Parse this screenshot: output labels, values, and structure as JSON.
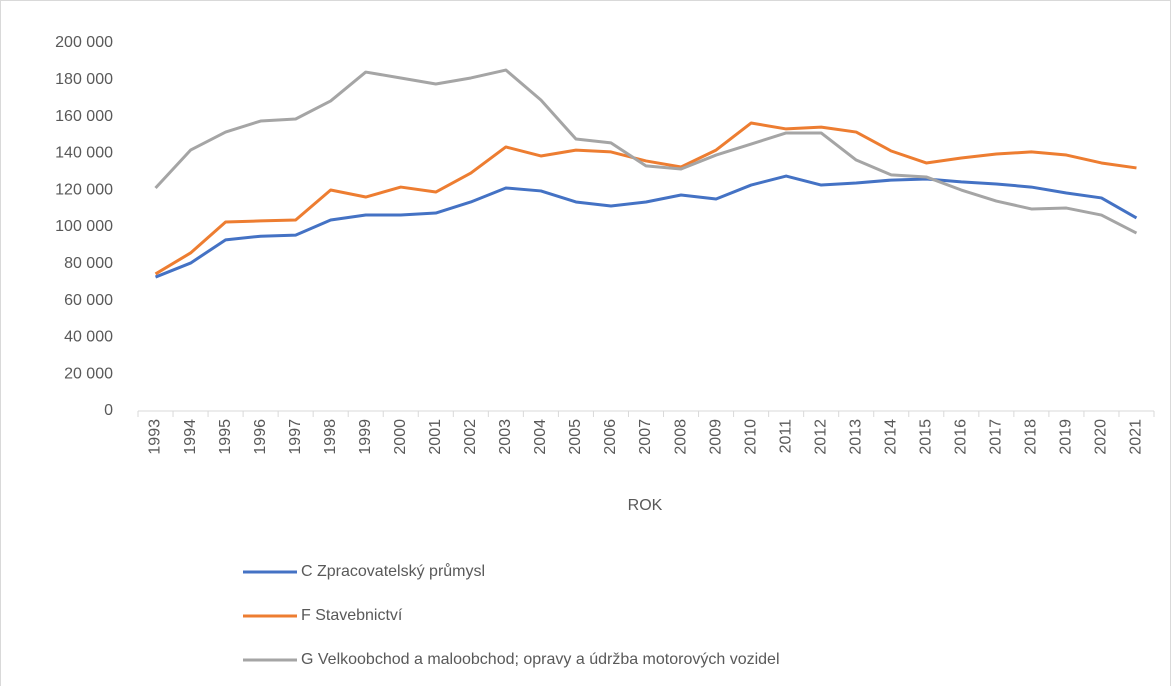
{
  "chart_data": {
    "type": "line",
    "x_label": "ROK",
    "categories": [
      "1993",
      "1994",
      "1995",
      "1996",
      "1997",
      "1998",
      "1999",
      "2000",
      "2001",
      "2002",
      "2003",
      "2004",
      "2005",
      "2006",
      "2007",
      "2008",
      "2009",
      "2010",
      "2011",
      "2012",
      "2013",
      "2014",
      "2015",
      "2016",
      "2017",
      "2018",
      "2019",
      "2020",
      "2021"
    ],
    "series": [
      {
        "name": "C Zpracovatelský průmysl",
        "color": "#4472c4",
        "values": [
          72800,
          80400,
          93000,
          95000,
          95600,
          103800,
          106500,
          106500,
          107600,
          113600,
          121200,
          119600,
          113600,
          111400,
          113600,
          117400,
          115200,
          122800,
          127700,
          122800,
          123900,
          125500,
          126100,
          124500,
          123400,
          121700,
          118500,
          115800,
          104900
        ]
      },
      {
        "name": "F Stavebnictví",
        "color": "#ed7d31",
        "values": [
          74500,
          85900,
          102700,
          103300,
          103800,
          120100,
          116300,
          121700,
          119000,
          129300,
          143500,
          138600,
          141800,
          140800,
          135900,
          132600,
          141800,
          156500,
          153300,
          154300,
          151600,
          141300,
          134800,
          137500,
          139700,
          140800,
          139100,
          134800,
          132100
        ]
      },
      {
        "name": "G Velkoobchod a maloobchod; opravy a údržba motorových vozidel",
        "color": "#a5a5a5",
        "values": [
          121200,
          141800,
          151600,
          157600,
          158700,
          168500,
          184200,
          181000,
          177700,
          181000,
          185300,
          169000,
          147800,
          145700,
          133200,
          131500,
          139100,
          145100,
          151100,
          151100,
          136400,
          128300,
          127200,
          120100,
          114100,
          109800,
          110300,
          106500,
          96700
        ]
      }
    ],
    "ylim": [
      0,
      200000
    ],
    "yticks": [
      0,
      {
        "value": 20000,
        "label": "20 000"
      },
      {
        "value": 40000,
        "label": "40 000"
      },
      {
        "value": 60000,
        "label": "60 000"
      },
      {
        "value": 80000,
        "label": "80 000"
      },
      {
        "value": 100000,
        "label": "100 000"
      },
      {
        "value": 120000,
        "label": "120 000"
      },
      {
        "value": 140000,
        "label": "140 000"
      },
      {
        "value": 160000,
        "label": "160 000"
      },
      {
        "value": 180000,
        "label": "180 000"
      },
      {
        "value": 200000,
        "label": "200 000"
      }
    ],
    "grid": false,
    "legend": "bottom"
  }
}
